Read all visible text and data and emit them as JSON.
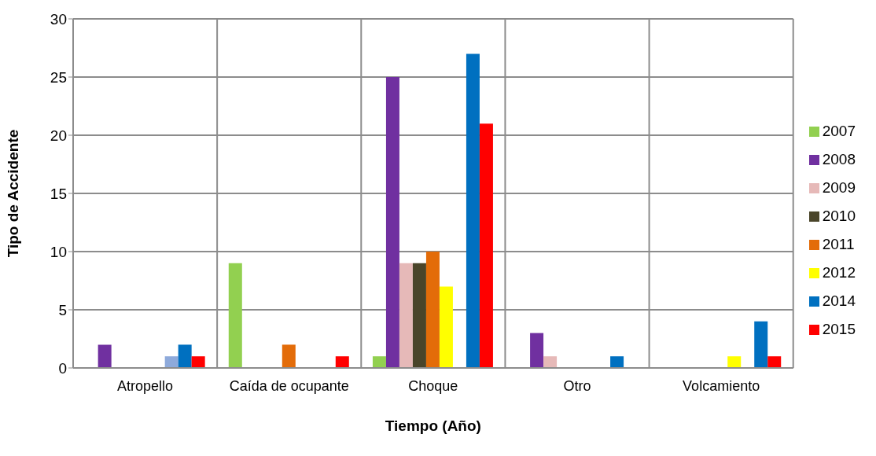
{
  "chart_data": {
    "type": "bar",
    "xlabel": "Tiempo (Año)",
    "ylabel": "Tipo de Accidente",
    "categories": [
      "Atropello",
      "Caída de ocupante",
      "Choque",
      "Otro",
      "Volcamiento"
    ],
    "series": [
      {
        "name": "2007",
        "color": "#92d050",
        "values": [
          0,
          9,
          1,
          0,
          0
        ]
      },
      {
        "name": "2008",
        "color": "#7030a0",
        "values": [
          2,
          0,
          25,
          3,
          0
        ]
      },
      {
        "name": "2009",
        "color": "#e6b9b8",
        "values": [
          0,
          0,
          9,
          1,
          0
        ]
      },
      {
        "name": "2010",
        "color": "#4a452a",
        "values": [
          0,
          0,
          9,
          0,
          0
        ]
      },
      {
        "name": "2011",
        "color": "#e36c09",
        "values": [
          0,
          2,
          10,
          0,
          0
        ]
      },
      {
        "name": "2012",
        "color": "#ffff00",
        "values": [
          0,
          0,
          7,
          0,
          1
        ]
      },
      {
        "color": "#8eaadb",
        "values": [
          1,
          null,
          null,
          null,
          null
        ]
      },
      {
        "name": "2014",
        "color": "#0070c0",
        "values": [
          2,
          0,
          27,
          1,
          4
        ]
      },
      {
        "name": "2015",
        "color": "#ff0000",
        "values": [
          1,
          1,
          21,
          0,
          1
        ]
      }
    ],
    "ylim": [
      0,
      30
    ],
    "yticks": [
      0,
      5,
      10,
      15,
      20,
      25,
      30
    ],
    "grid": true,
    "legend": "right"
  }
}
